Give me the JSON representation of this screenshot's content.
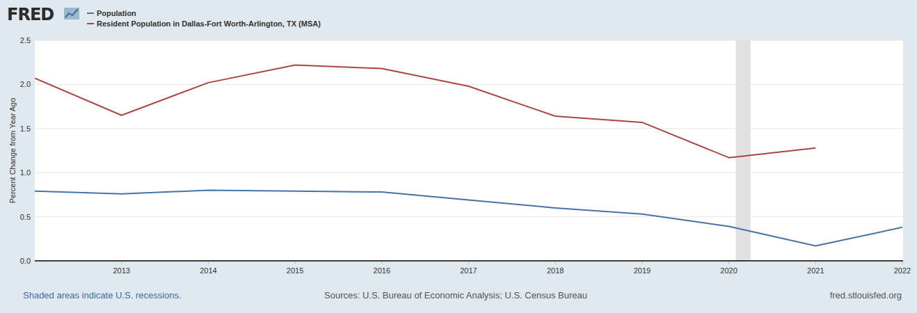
{
  "chart_data": {
    "type": "line",
    "logo": "FRED",
    "ylabel": "Percent Change from Year Ago",
    "recession_note": "Shaded areas indicate U.S. recessions.",
    "source": "Sources: U.S. Bureau of Economic Analysis; U.S. Census Bureau",
    "url": "fred.stlouisfed.org",
    "x": [
      2012,
      2013,
      2014,
      2015,
      2016,
      2017,
      2018,
      2019,
      2020,
      2021,
      2022
    ],
    "series": [
      {
        "name": "Population",
        "color": "#4572a7",
        "values": [
          0.79,
          0.76,
          0.8,
          0.79,
          0.78,
          0.69,
          0.6,
          0.53,
          0.39,
          0.17,
          0.38
        ]
      },
      {
        "name": "Resident Population in Dallas-Fort Worth-Arlington, TX (MSA)",
        "color": "#aa4643",
        "values": [
          2.07,
          1.65,
          2.02,
          2.22,
          2.18,
          1.98,
          1.64,
          1.57,
          1.17,
          1.28,
          null
        ]
      }
    ],
    "recessions": [
      {
        "start": 2020.08,
        "end": 2020.25
      }
    ],
    "xlim": [
      2012,
      2022
    ],
    "xticks": [
      2013,
      2014,
      2015,
      2016,
      2017,
      2018,
      2019,
      2020,
      2021,
      2022
    ],
    "ylim": [
      0,
      2.5
    ],
    "yticks": [
      {
        "value": 0,
        "label": "0.0"
      },
      0.5,
      {
        "value": 1,
        "label": "1.0"
      },
      1.5,
      {
        "value": 2,
        "label": "2.0"
      },
      2.5
    ],
    "grid": true,
    "legend": "top",
    "line_style": "solid",
    "marker": "none"
  }
}
